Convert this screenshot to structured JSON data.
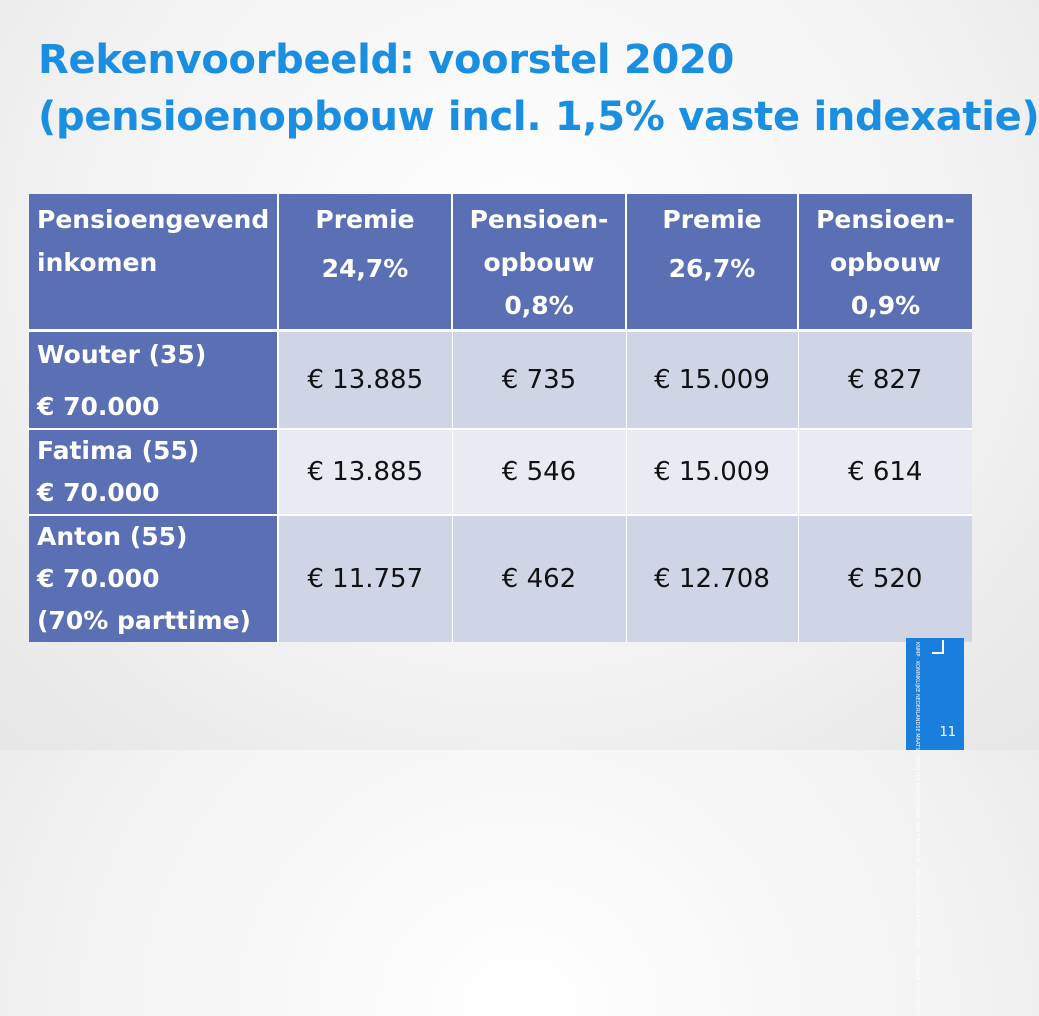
{
  "title": {
    "line1": "Rekenvoorbeeld: voorstel 2020",
    "line2": "(pensioenopbouw incl. 1,5% vaste indexatie)"
  },
  "table": {
    "headers": [
      [
        "Pensioengevend",
        "inkomen"
      ],
      [
        "Premie",
        "24,7%"
      ],
      [
        "Pensioen-",
        "opbouw",
        "0,8%"
      ],
      [
        "Premie",
        "26,7%"
      ],
      [
        "Pensioen-",
        "opbouw",
        "0,9%"
      ]
    ],
    "rows": [
      {
        "label": [
          "Wouter (35)",
          "€ 70.000"
        ],
        "values": [
          "€ 13.885",
          "€ 735",
          "€ 15.009",
          "€ 827"
        ]
      },
      {
        "label": [
          "Fatima (55)",
          "€ 70.000"
        ],
        "values": [
          "€ 13.885",
          "€ 546",
          "€ 15.009",
          "€ 614"
        ]
      },
      {
        "label": [
          "Anton (55)",
          "€ 70.000",
          "(70% parttime)"
        ],
        "values": [
          "€ 11.757",
          "€ 462",
          "€ 12.708",
          "€ 520"
        ]
      }
    ]
  },
  "footer": {
    "logo_text": "KNMP · KONINKLIJKE NEDERLANDSE MAATSCHAPPIJ TER BEVORDERING DER PHARMACIE · ORGANISATIE VAN APOTHEKERS · OPENBARE APOTHEKERS",
    "page_number": "11"
  },
  "colors": {
    "title": "#1a8ee0",
    "header_bg": "#5b70b4",
    "row_odd": "#d0d5e6",
    "row_even": "#e9ebf3",
    "logo_bar": "#1a7fdc"
  }
}
